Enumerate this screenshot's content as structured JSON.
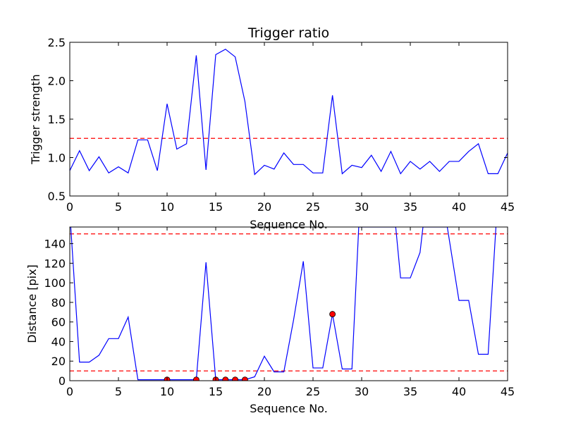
{
  "chart_data": [
    {
      "type": "line",
      "title": "Trigger ratio",
      "xlabel": "Sequence No.",
      "ylabel": "Trigger strength",
      "xlim": [
        0,
        45
      ],
      "ylim": [
        0.5,
        2.5
      ],
      "xticks": [
        "0",
        "5",
        "10",
        "15",
        "20",
        "25",
        "30",
        "35",
        "40",
        "45"
      ],
      "yticks": [
        "0.5",
        "1.0",
        "1.5",
        "2.0",
        "2.5"
      ],
      "grid": false,
      "colors": {
        "line": "#0000ff",
        "threshold": "#ff0000"
      },
      "threshold": 1.25,
      "series": [
        {
          "x": [
            0,
            1,
            2,
            3,
            4,
            5,
            6,
            7,
            8,
            9,
            10,
            11,
            12,
            13,
            14,
            15,
            16,
            17,
            18,
            19,
            20,
            21,
            22,
            23,
            24,
            25,
            26,
            27,
            28,
            29,
            30,
            31,
            32,
            33,
            34,
            35,
            36,
            37,
            38,
            39,
            40,
            41,
            42,
            43,
            44,
            45
          ],
          "values": [
            0.83,
            1.09,
            0.83,
            1.01,
            0.8,
            0.88,
            0.8,
            1.23,
            1.23,
            0.83,
            1.7,
            1.11,
            1.18,
            2.33,
            0.84,
            2.34,
            2.41,
            2.31,
            1.73,
            0.78,
            0.9,
            0.85,
            1.06,
            0.91,
            0.91,
            0.8,
            0.8,
            1.81,
            0.79,
            0.9,
            0.87,
            1.03,
            0.82,
            1.08,
            0.79,
            0.95,
            0.85,
            0.95,
            0.82,
            0.95,
            0.95,
            1.08,
            1.18,
            0.79,
            0.79,
            1.06
          ]
        }
      ]
    },
    {
      "type": "line",
      "title": "",
      "xlabel": "Sequence No.",
      "ylabel": "Distance [pix]",
      "xlim": [
        0,
        45
      ],
      "ylim": [
        0,
        157
      ],
      "xticks": [
        "0",
        "5",
        "10",
        "15",
        "20",
        "25",
        "30",
        "35",
        "40",
        "45"
      ],
      "yticks": [
        "0",
        "20",
        "40",
        "60",
        "80",
        "100",
        "120",
        "140"
      ],
      "grid": false,
      "colors": {
        "line": "#0000ff",
        "threshold": "#ff0000",
        "marker": "#ff0000"
      },
      "thresholds": [
        10,
        150
      ],
      "series": [
        {
          "x": [
            0.1,
            1,
            2,
            3,
            4,
            5,
            6,
            7,
            8,
            9,
            10,
            11,
            12,
            13,
            14,
            15,
            16,
            17,
            18,
            19,
            20,
            21,
            22,
            23,
            24,
            25,
            26,
            27,
            28,
            29,
            29.7,
            33.5,
            34,
            35,
            36,
            36.3,
            38.8,
            40,
            41,
            42,
            43,
            43.8
          ],
          "values": [
            157,
            19,
            19,
            26,
            43,
            43,
            65,
            1,
            1,
            1,
            1,
            1,
            1,
            1,
            121,
            1,
            1,
            1,
            1,
            4,
            25,
            9,
            9,
            62,
            122,
            13,
            13,
            68,
            12,
            12,
            157,
            157,
            105,
            105,
            131,
            157,
            157,
            82,
            82,
            27,
            27,
            157
          ]
        },
        {
          "name": "",
          "marker": true,
          "x": [
            10,
            13,
            15,
            16,
            17,
            18,
            27
          ],
          "values": [
            1,
            1,
            1,
            1,
            1,
            1,
            68
          ]
        }
      ]
    }
  ]
}
